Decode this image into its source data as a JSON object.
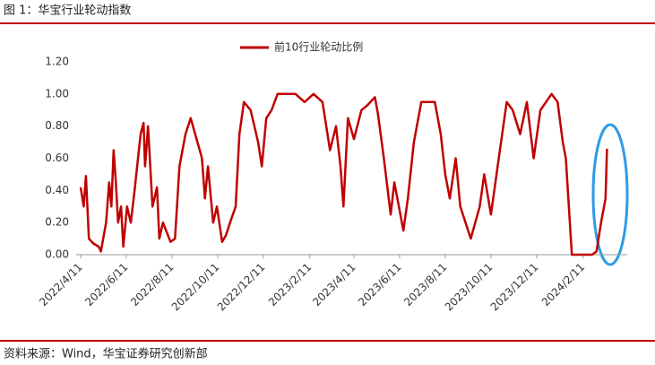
{
  "header": {
    "title": "图 1：华宝行业轮动指数"
  },
  "chart_data": {
    "type": "line",
    "x": [
      "2022/4/11",
      "2022/4/15",
      "2022/4/18",
      "2022/4/22",
      "2022/4/28",
      "2022/5/5",
      "2022/5/8",
      "2022/5/15",
      "2022/5/19",
      "2022/5/22",
      "2022/5/25",
      "2022/5/28",
      "2022/5/31",
      "2022/6/4",
      "2022/6/7",
      "2022/6/12",
      "2022/6/17",
      "2022/6/22",
      "2022/6/30",
      "2022/7/4",
      "2022/7/6",
      "2022/7/10",
      "2022/7/16",
      "2022/7/22",
      "2022/7/25",
      "2022/7/30",
      "2022/8/9",
      "2022/8/15",
      "2022/8/21",
      "2022/8/29",
      "2022/9/5",
      "2022/9/14",
      "2022/9/20",
      "2022/9/24",
      "2022/9/28",
      "2022/10/5",
      "2022/10/10",
      "2022/10/17",
      "2022/10/22",
      "2022/10/29",
      "2022/11/4",
      "2022/11/9",
      "2022/11/15",
      "2022/11/24",
      "2022/12/4",
      "2022/12/9",
      "2022/12/15",
      "2022/12/22",
      "2022/12/30",
      "2023/1/23",
      "2023/2/4",
      "2023/2/16",
      "2023/2/28",
      "2023/3/10",
      "2023/3/18",
      "2023/3/24",
      "2023/3/28",
      "2023/4/3",
      "2023/4/11",
      "2023/4/21",
      "2023/4/29",
      "2023/5/9",
      "2023/5/13",
      "2023/5/21",
      "2023/5/30",
      "2023/6/4",
      "2023/6/16",
      "2023/6/22",
      "2023/6/30",
      "2023/7/10",
      "2023/7/28",
      "2023/8/5",
      "2023/8/11",
      "2023/8/17",
      "2023/8/25",
      "2023/8/31",
      "2023/9/14",
      "2023/9/26",
      "2023/10/2",
      "2023/10/11",
      "2023/10/17",
      "2023/10/23",
      "2023/11/1",
      "2023/11/9",
      "2023/11/19",
      "2023/11/28",
      "2023/12/7",
      "2023/12/16",
      "2023/12/31",
      "2024/1/8",
      "2024/1/15",
      "2024/1/19",
      "2024/1/27",
      "2024/2/23",
      "2024/2/29",
      "2024/3/6",
      "2024/3/12",
      "2024/3/14"
    ],
    "series": [
      {
        "name": "前10行业轮动比例",
        "color": "#c00000",
        "values": [
          0.42,
          0.3,
          0.49,
          0.1,
          0.07,
          0.05,
          0.02,
          0.2,
          0.45,
          0.3,
          0.65,
          0.45,
          0.2,
          0.3,
          0.05,
          0.3,
          0.2,
          0.4,
          0.75,
          0.82,
          0.55,
          0.8,
          0.3,
          0.42,
          0.1,
          0.2,
          0.08,
          0.1,
          0.55,
          0.75,
          0.85,
          0.7,
          0.6,
          0.35,
          0.55,
          0.2,
          0.3,
          0.08,
          0.12,
          0.22,
          0.3,
          0.75,
          0.95,
          0.9,
          0.7,
          0.55,
          0.85,
          0.9,
          1.0,
          1.0,
          0.95,
          1.0,
          0.95,
          0.65,
          0.8,
          0.55,
          0.3,
          0.85,
          0.72,
          0.9,
          0.93,
          0.98,
          0.88,
          0.6,
          0.25,
          0.45,
          0.15,
          0.35,
          0.7,
          0.95,
          0.95,
          0.75,
          0.5,
          0.35,
          0.6,
          0.3,
          0.1,
          0.3,
          0.5,
          0.25,
          0.45,
          0.65,
          0.95,
          0.9,
          0.75,
          0.95,
          0.6,
          0.9,
          1.0,
          0.95,
          0.7,
          0.6,
          0.0,
          0.0,
          0.02,
          0.2,
          0.35,
          0.66
        ]
      }
    ],
    "xlim": [
      "2022/4/5",
      "2024/4/10"
    ],
    "xticks": [
      "2022/4/11",
      "2022/6/11",
      "2022/8/11",
      "2022/10/11",
      "2022/12/11",
      "2023/2/11",
      "2023/4/11",
      "2023/6/11",
      "2023/8/11",
      "2023/10/11",
      "2023/12/11",
      "2024/2/11"
    ],
    "ylim": [
      0,
      1.2
    ],
    "yticks": [
      {
        "value": 0,
        "label": "0.00"
      },
      {
        "value": 0.2,
        "label": "0.20"
      },
      {
        "value": 0.4,
        "label": "0.40"
      },
      {
        "value": 0.6,
        "label": "0.60"
      },
      {
        "value": 0.8,
        "label": "0.80"
      },
      {
        "value": 1,
        "label": "1.00"
      },
      {
        "value": 1.2,
        "label": "1.20"
      }
    ],
    "legend": "top"
  },
  "footer": {
    "source": "资料来源：Wind，华宝证券研究创新部"
  }
}
